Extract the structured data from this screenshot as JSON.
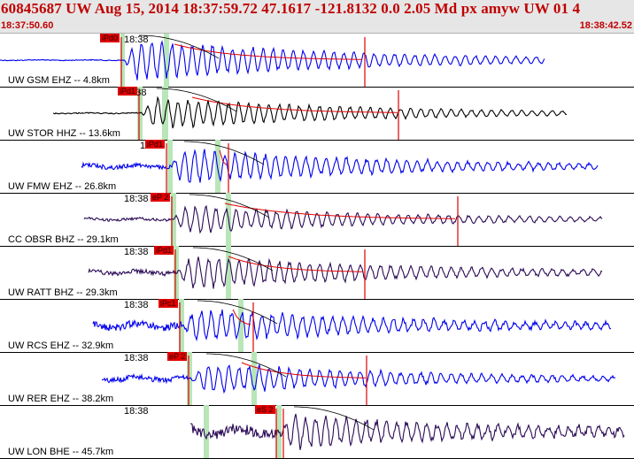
{
  "header": {
    "title": "60845687 UW Aug 15, 2014 18:37:59.72    47.1617 -121.8132  0.0 2.05 Md px amyw UW 01    4",
    "time_start": "18:37:50.60",
    "time_end": "18:38:42.52"
  },
  "colors": {
    "title_red": "#c00000",
    "blue_trace": "#0000ee",
    "black_trace": "#000000",
    "purple_trace": "#2a0a55",
    "green_band": "#b8e6b8",
    "pick_red": "#e00000"
  },
  "tick_label": "18:38",
  "traces": [
    {
      "station": "UW GSM EHZ -- 4.8km",
      "pick": "iPd0",
      "color": "blue",
      "amp": 27,
      "onset": 140,
      "end": 615,
      "noise": 0.5
    },
    {
      "station": "UW STOR HHZ -- 13.6km",
      "pick": "iPd1",
      "color": "black",
      "amp": 20,
      "onset": 160,
      "end": 640,
      "noise": 0.6
    },
    {
      "station": "UW FMW EHZ -- 26.8km",
      "pick": "iPd1",
      "color": "blue",
      "amp": 22,
      "onset": 192,
      "end": 675,
      "noise": 2.5
    },
    {
      "station": "CC OBSR BHZ -- 29.1km",
      "pick": "eP 2",
      "color": "purple",
      "amp": 18,
      "onset": 195,
      "end": 680,
      "noise": 1.5
    },
    {
      "station": "UW RATT BHZ -- 29.3km",
      "pick": "iPd1",
      "color": "purple",
      "amp": 22,
      "onset": 200,
      "end": 680,
      "noise": 2.5
    },
    {
      "station": "UW RCS EHZ -- 32.9km",
      "pick": "iPc1",
      "color": "blue",
      "amp": 22,
      "onset": 205,
      "end": 690,
      "noise": 4.0
    },
    {
      "station": "UW RER EHZ -- 38.2km",
      "pick": "eP 2",
      "color": "blue",
      "amp": 20,
      "onset": 215,
      "end": 695,
      "noise": 3.0
    },
    {
      "station": "UW LON BHE -- 45.7km",
      "pick": "eS 2",
      "color": "purple",
      "amp": 22,
      "onset": 315,
      "end": 705,
      "noise": 6.0
    }
  ]
}
